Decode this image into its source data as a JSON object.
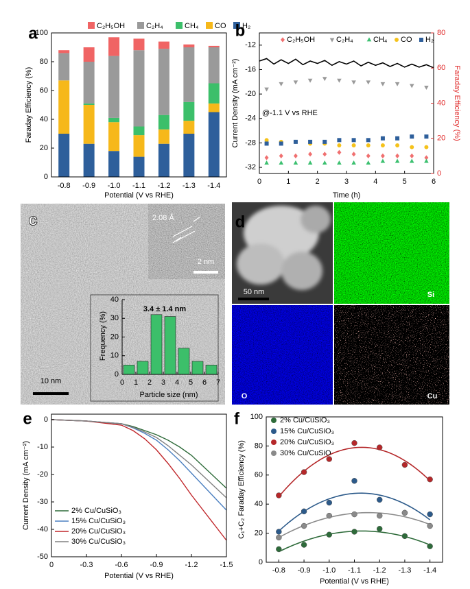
{
  "chart_data": [
    {
      "type": "bar",
      "panel": "a",
      "stacked": true,
      "ylabel": "Faraday Efficiency (%)",
      "xlabel": "Potential (V vs RHE)",
      "categories": [
        "-0.8",
        "-0.9",
        "-1.0",
        "-1.1",
        "-1.2",
        "-1.3",
        "-1.4"
      ],
      "ylim": [
        0,
        100
      ],
      "yticks": [
        0,
        20,
        40,
        60,
        80,
        100
      ],
      "series": [
        {
          "name": "H₂",
          "color": "#2e5f9b",
          "values": [
            30,
            23,
            18,
            14,
            23,
            30,
            45
          ]
        },
        {
          "name": "CO",
          "color": "#f6b81a",
          "values": [
            37,
            27,
            20,
            15,
            10,
            9,
            6
          ]
        },
        {
          "name": "CH₄",
          "color": "#3cbf6a",
          "values": [
            0,
            1,
            3,
            6,
            10,
            13,
            14
          ]
        },
        {
          "name": "C₂H₄",
          "color": "#9a9a9a",
          "values": [
            19,
            29,
            43,
            53,
            46,
            38,
            25
          ]
        },
        {
          "name": "C₂H₅OH",
          "color": "#f06464",
          "values": [
            2,
            10,
            13,
            8,
            5,
            2,
            1
          ]
        }
      ]
    },
    {
      "type": "line-scatter",
      "panel": "b",
      "xlabel": "Time (h)",
      "ylabel": "Current Density (mA cm⁻²)",
      "y2label": "Faraday Efficiency (%)",
      "annotation": "@-1.1 V vs RHE",
      "xlim": [
        0,
        6
      ],
      "xticks": [
        0,
        1,
        2,
        3,
        4,
        5,
        6
      ],
      "ylim": [
        -33,
        -10
      ],
      "yticks": [
        -12,
        -16,
        -20,
        -24,
        -28,
        -32
      ],
      "y2lim": [
        0,
        80
      ],
      "y2ticks": [
        0,
        20,
        40,
        60,
        80
      ],
      "y2color": "#e02828",
      "current": {
        "color": "#000000",
        "x": [
          0,
          0.25,
          0.5,
          0.75,
          1,
          1.25,
          1.5,
          1.75,
          2,
          2.25,
          2.5,
          2.75,
          3,
          3.25,
          3.5,
          3.75,
          4,
          4.25,
          4.5,
          4.75,
          5,
          5.25,
          5.5,
          5.75,
          6
        ],
        "values": [
          -14.6,
          -14.2,
          -15.1,
          -14.4,
          -15.0,
          -14.3,
          -15.2,
          -14.6,
          -15.0,
          -14.5,
          -15.3,
          -14.7,
          -15.1,
          -14.6,
          -15.4,
          -14.8,
          -15.3,
          -14.9,
          -15.5,
          -15.0,
          -15.6,
          -15.1,
          -15.6,
          -15.2,
          -15.7
        ]
      },
      "fe_x": [
        0.25,
        0.75,
        1.25,
        1.75,
        2.25,
        2.75,
        3.25,
        3.75,
        4.25,
        4.75,
        5.25,
        5.75
      ],
      "series": [
        {
          "name": "C₂H₅OH",
          "color": "#f07070",
          "marker": "diamond",
          "axis": "y2",
          "values": [
            9,
            10,
            10,
            11,
            11,
            12,
            11,
            10,
            10,
            10,
            10,
            9
          ]
        },
        {
          "name": "C₂H₄",
          "color": "#9a9a9a",
          "marker": "triangle-down",
          "axis": "y2",
          "values": [
            48,
            51,
            52,
            53,
            54,
            53,
            52,
            52,
            51,
            51,
            50,
            49
          ]
        },
        {
          "name": "CH₄",
          "color": "#3cc070",
          "marker": "triangle",
          "axis": "y2",
          "values": [
            6,
            6,
            6,
            6,
            6,
            6,
            6,
            6,
            7,
            7,
            7,
            7
          ]
        },
        {
          "name": "CO",
          "color": "#f5c21b",
          "marker": "circle",
          "axis": "y2",
          "values": [
            19,
            18,
            18,
            17,
            17,
            16,
            16,
            16,
            16,
            16,
            15,
            15
          ]
        },
        {
          "name": "H₂",
          "color": "#2e5f9b",
          "marker": "square",
          "axis": "y2",
          "values": [
            17,
            17,
            18,
            18,
            18,
            19,
            19,
            19,
            20,
            20,
            21,
            21
          ]
        }
      ]
    },
    {
      "type": "histogram",
      "panel": "c",
      "lattice_label": "2.08 Å",
      "inset_scale": "2 nm",
      "scale": "10 nm",
      "annotation": "3.4 ± 1.4 nm",
      "xlabel": "Particle size (nm)",
      "ylabel": "Frequency (%)",
      "bins": [
        0,
        1,
        2,
        3,
        4,
        5,
        6,
        7
      ],
      "values": [
        5,
        7,
        32,
        31,
        14,
        7,
        5
      ],
      "color": "#3cbf6a",
      "xlim": [
        0,
        7
      ],
      "xticks": [
        0,
        1,
        2,
        3,
        4,
        5,
        6,
        7
      ],
      "ylim": [
        0,
        40
      ],
      "yticks": [
        0,
        10,
        20,
        30,
        40
      ]
    },
    {
      "type": "image",
      "panel": "d",
      "scale": "50 nm",
      "maps": [
        "Si",
        "O",
        "Cu"
      ]
    },
    {
      "type": "line",
      "panel": "e",
      "xlabel": "Potential (V vs RHE)",
      "ylabel": "Current Density (mA cm⁻²)",
      "x": [
        0,
        -0.3,
        -0.6,
        -0.7,
        -0.8,
        -0.9,
        -1.0,
        -1.1,
        -1.2,
        -1.3,
        -1.4,
        -1.5
      ],
      "xlim": [
        0,
        -1.5
      ],
      "xticks": [
        0,
        -0.3,
        -0.6,
        -0.9,
        -1.2,
        -1.5
      ],
      "ylim": [
        -50,
        2
      ],
      "yticks": [
        0,
        -10,
        -20,
        -30,
        -40,
        -50
      ],
      "series": [
        {
          "name": "2% Cu/CuSiO₃",
          "color": "#2e6b3a",
          "values": [
            0,
            -0.5,
            -1.5,
            -2.5,
            -4,
            -5.5,
            -7.5,
            -10,
            -13,
            -17,
            -21,
            -25
          ]
        },
        {
          "name": "15% Cu/CuSiO₃",
          "color": "#4a7fc0",
          "values": [
            0,
            -0.5,
            -1.5,
            -3,
            -5,
            -7.5,
            -11,
            -15,
            -19.5,
            -24,
            -28.5,
            -33
          ]
        },
        {
          "name": "20% Cu/CuSiO₃",
          "color": "#c0262a",
          "values": [
            0,
            -0.5,
            -2,
            -4,
            -7,
            -11,
            -16,
            -21.5,
            -27.5,
            -33,
            -38.5,
            -44
          ]
        },
        {
          "name": "30% Cu/CuSiO₃",
          "color": "#808080",
          "values": [
            0,
            -0.5,
            -1.5,
            -2.8,
            -4.5,
            -6.5,
            -9.5,
            -13,
            -16.5,
            -20.5,
            -24.5,
            -28.5
          ]
        }
      ]
    },
    {
      "type": "scatter",
      "panel": "f",
      "fit": true,
      "xlabel": "Potential (V vs RHE)",
      "ylabel": "C₁+C₂ Faraday Efficiency (%)",
      "x": [
        -0.8,
        -0.9,
        -1.0,
        -1.1,
        -1.2,
        -1.3,
        -1.4
      ],
      "xlim": [
        -0.75,
        -1.45
      ],
      "xticks": [
        -0.8,
        -0.9,
        {
          "value": -1,
          "label": "-1.0"
        },
        -1.1,
        -1.2,
        -1.3,
        -1.4
      ],
      "ylim": [
        0,
        100
      ],
      "yticks": [
        0,
        20,
        40,
        60,
        80,
        100
      ],
      "series": [
        {
          "name": "2% Cu/CuSiO₃",
          "color": "#2e6b3a",
          "values": [
            9,
            12,
            19,
            21,
            23,
            18,
            11
          ]
        },
        {
          "name": "15% Cu/CuSiO₃",
          "color": "#2c5a8a",
          "values": [
            21,
            35,
            41,
            56,
            43,
            34,
            33
          ]
        },
        {
          "name": "20% Cu/CuSiO₃",
          "color": "#b5282a",
          "values": [
            46,
            62,
            71,
            82,
            79,
            67,
            57
          ]
        },
        {
          "name": "30% Cu/CuSiO",
          "color": "#8a8a8a",
          "values": [
            17,
            25,
            32,
            33,
            32,
            34,
            25
          ]
        }
      ]
    }
  ]
}
